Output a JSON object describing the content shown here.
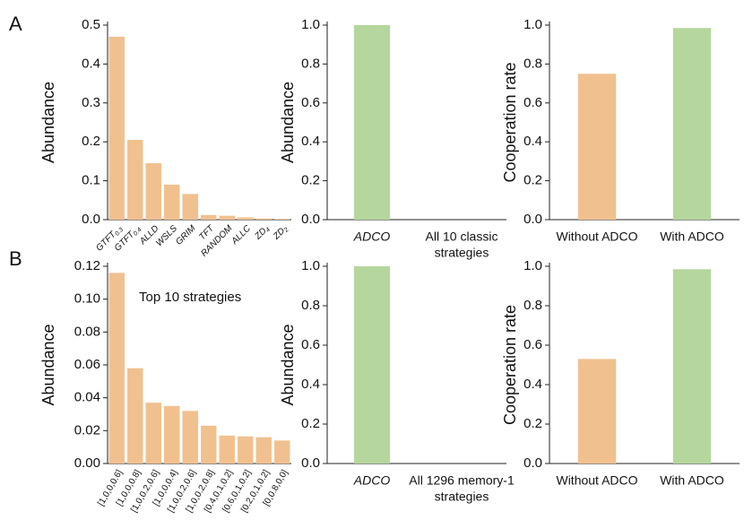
{
  "panels": [
    "A",
    "B"
  ],
  "chart_data": [
    {
      "type": "bar",
      "ylabel": "Abundance",
      "color": "#f1c08f",
      "categories": [
        {
          "text": "GTFT",
          "sub": "0.3"
        },
        {
          "text": "GTFT",
          "sub": "0.4"
        },
        {
          "text": "ALLD"
        },
        {
          "text": "WSLS"
        },
        {
          "text": "GRIM"
        },
        {
          "text": "TFT"
        },
        {
          "text": "RANDOM"
        },
        {
          "text": "ALLC"
        },
        {
          "text": "ZD",
          "sub": "4"
        },
        {
          "text": "ZD",
          "sub": "2"
        }
      ],
      "values": [
        0.47,
        0.205,
        0.145,
        0.09,
        0.066,
        0.012,
        0.01,
        0.006,
        0.003,
        0.002
      ],
      "ylim": [
        0,
        0.5
      ],
      "yticks": [
        {
          "value": 0,
          "label": "0.0"
        },
        0.1,
        0.2,
        0.3,
        0.4,
        0.5
      ]
    },
    {
      "type": "bar",
      "ylabel": "Abundance",
      "color": "#b5d69d",
      "categories": [
        "ADCO",
        [
          "All 10 classic",
          "strategies"
        ]
      ],
      "values": [
        1.0,
        0
      ],
      "ylim": [
        0,
        1.0
      ],
      "yticks": [
        {
          "value": 0,
          "label": "0.0"
        },
        0.2,
        0.4,
        0.6,
        0.8,
        {
          "value": 1,
          "label": "1.0"
        }
      ]
    },
    {
      "type": "bar",
      "ylabel": "Cooperation rate",
      "colors": [
        "#f1c08f",
        "#b5d69d"
      ],
      "categories": [
        "Without ADCO",
        "With ADCO"
      ],
      "values": [
        0.75,
        0.985
      ],
      "ylim": [
        0,
        1.0
      ],
      "yticks": [
        {
          "value": 0,
          "label": "0.0"
        },
        0.2,
        0.4,
        0.6,
        0.8,
        {
          "value": 1,
          "label": "1.0"
        }
      ]
    },
    {
      "type": "bar",
      "ylabel": "Abundance",
      "color": "#f1c08f",
      "annotation": "Top 10 strategies",
      "categories": [
        "[1,0,0,0.6]",
        "[1,0,0,0.8]",
        "[1,0,0.2,0.6]",
        "[1,0,0,0.4]",
        "[1,0,0.2,0.6]",
        "[1,0,0.2,0.8]",
        "[0.4,0,1,0.2]",
        "[0.6,0,1,0.2]",
        "[0.2,0,1,0.2]",
        "[0,0.8,0,0]"
      ],
      "values": [
        0.116,
        0.058,
        0.037,
        0.035,
        0.032,
        0.023,
        0.017,
        0.0165,
        0.016,
        0.014
      ],
      "ylim": [
        0,
        0.12
      ],
      "yticks": [
        {
          "value": 0,
          "label": "0.00"
        },
        {
          "value": 0.02,
          "label": "0.02"
        },
        {
          "value": 0.04,
          "label": "0.04"
        },
        {
          "value": 0.06,
          "label": "0.06"
        },
        {
          "value": 0.08,
          "label": "0.08"
        },
        {
          "value": 0.1,
          "label": "0.10"
        },
        {
          "value": 0.12,
          "label": "0.12"
        }
      ]
    },
    {
      "type": "bar",
      "ylabel": "Abundance",
      "color": "#b5d69d",
      "categories": [
        "ADCO",
        [
          "All 1296 memory-1",
          "strategies"
        ]
      ],
      "values": [
        1.0,
        0
      ],
      "ylim": [
        0,
        1.0
      ],
      "yticks": [
        {
          "value": 0,
          "label": "0.0"
        },
        0.2,
        0.4,
        0.6,
        0.8,
        {
          "value": 1,
          "label": "1.0"
        }
      ]
    },
    {
      "type": "bar",
      "ylabel": "Cooperation rate",
      "colors": [
        "#f1c08f",
        "#b5d69d"
      ],
      "categories": [
        "Without ADCO",
        "With ADCO"
      ],
      "values": [
        0.53,
        0.985
      ],
      "ylim": [
        0,
        1.0
      ],
      "yticks": [
        {
          "value": 0,
          "label": "0.0"
        },
        0.2,
        0.4,
        0.6,
        0.8,
        {
          "value": 1,
          "label": "1.0"
        }
      ]
    }
  ]
}
